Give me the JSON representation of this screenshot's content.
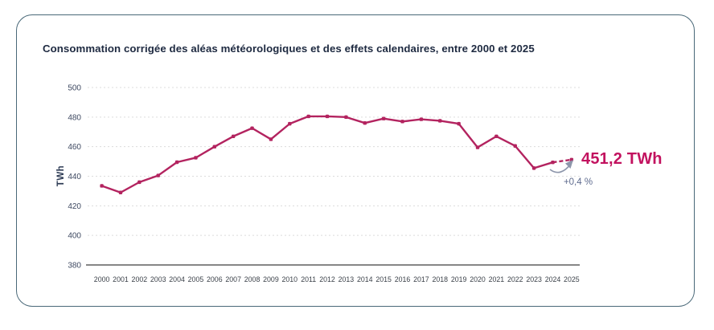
{
  "card": {
    "title": "Consommation corrigée des aléas météorologiques et des effets calendaires, entre 2000 et 2025",
    "border_color": "#496878",
    "background": "#ffffff"
  },
  "chart_data": {
    "type": "line",
    "title": "Consommation corrigée des aléas météorologiques et des effets calendaires, entre 2000 et 2025",
    "xlabel": "",
    "ylabel": "TWh",
    "ylim": [
      380,
      500
    ],
    "yticks": [
      380,
      400,
      420,
      440,
      460,
      480,
      500
    ],
    "grid": "horizontal-dashed",
    "legend": "none",
    "x": [
      2000,
      2001,
      2002,
      2003,
      2004,
      2005,
      2006,
      2007,
      2008,
      2009,
      2010,
      2011,
      2012,
      2013,
      2014,
      2015,
      2016,
      2017,
      2018,
      2019,
      2020,
      2021,
      2022,
      2023,
      2024,
      2025
    ],
    "values": [
      433.5,
      429,
      436,
      440.5,
      449.5,
      452.5,
      460,
      467,
      472.5,
      465,
      475.5,
      480.5,
      480.5,
      480,
      476,
      479,
      477,
      478.5,
      477.5,
      475.5,
      459.5,
      467,
      460.5,
      445.5,
      449.4,
      451.2
    ],
    "marker": "small-square",
    "final_segment_style": "dashed-2024-to-2025",
    "colors": {
      "line": "#b3235f",
      "grid": "#dcdcdc",
      "axis": "#3f3f3f",
      "tick_text": "#3e4961",
      "x_tick_text": "#3b4149",
      "ylabel_text": "#2e3c55"
    },
    "annotation": {
      "value_label": "451,2 TWh",
      "value_color": "#c2125f",
      "delta_label": "+0,4 %",
      "delta_color": "#5e6b8e",
      "arrow": "curved-up-right",
      "arrow_color": "#8d96ab"
    }
  }
}
